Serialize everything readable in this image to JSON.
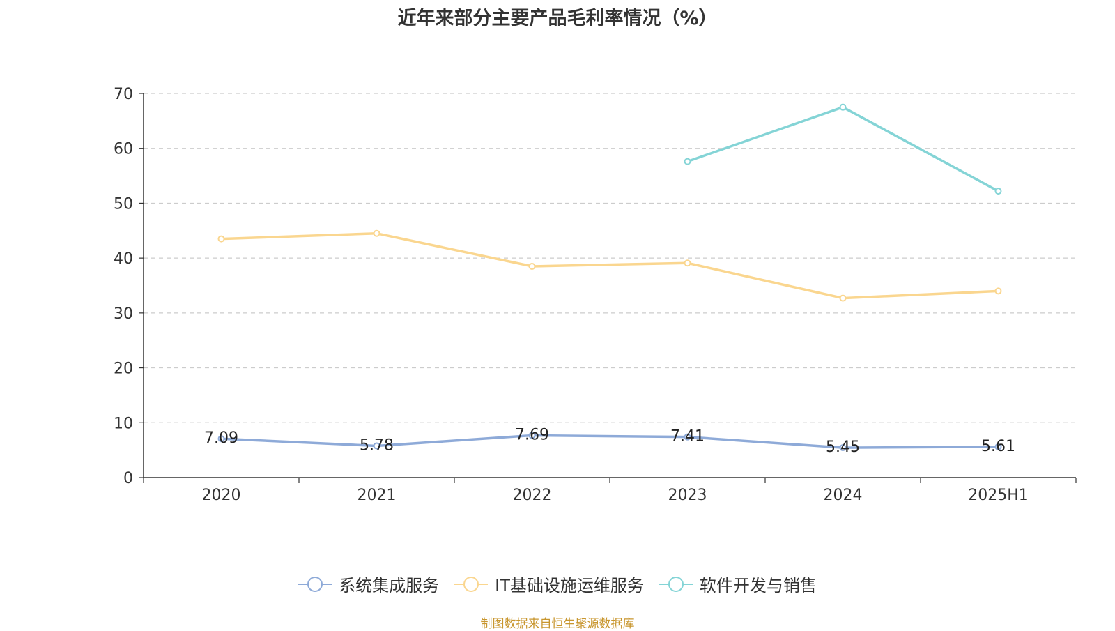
{
  "chart_data": {
    "type": "line",
    "title": "近年来部分主要产品毛利率情况（%）",
    "categories": [
      "2020",
      "2021",
      "2022",
      "2023",
      "2024",
      "2025H1"
    ],
    "ylim": [
      0,
      70
    ],
    "yticks": [
      0,
      10,
      20,
      30,
      40,
      50,
      60,
      70
    ],
    "grid": true,
    "legend_position": "bottom",
    "series": [
      {
        "name": "系统集成服务",
        "color": "#8eaad8",
        "values": [
          7.09,
          5.78,
          7.69,
          7.41,
          5.45,
          5.61
        ],
        "labels": [
          "7.09",
          "5.78",
          "7.69",
          "7.41",
          "5.45",
          "5.61"
        ]
      },
      {
        "name": "IT基础设施运维服务",
        "color": "#fad68f",
        "values": [
          43.5,
          44.5,
          38.5,
          39.1,
          32.7,
          34.0
        ]
      },
      {
        "name": "软件开发与销售",
        "color": "#84d4d6",
        "values": [
          null,
          null,
          null,
          57.6,
          67.5,
          52.2
        ]
      }
    ]
  },
  "source_note": "制图数据来自恒生聚源数据库"
}
